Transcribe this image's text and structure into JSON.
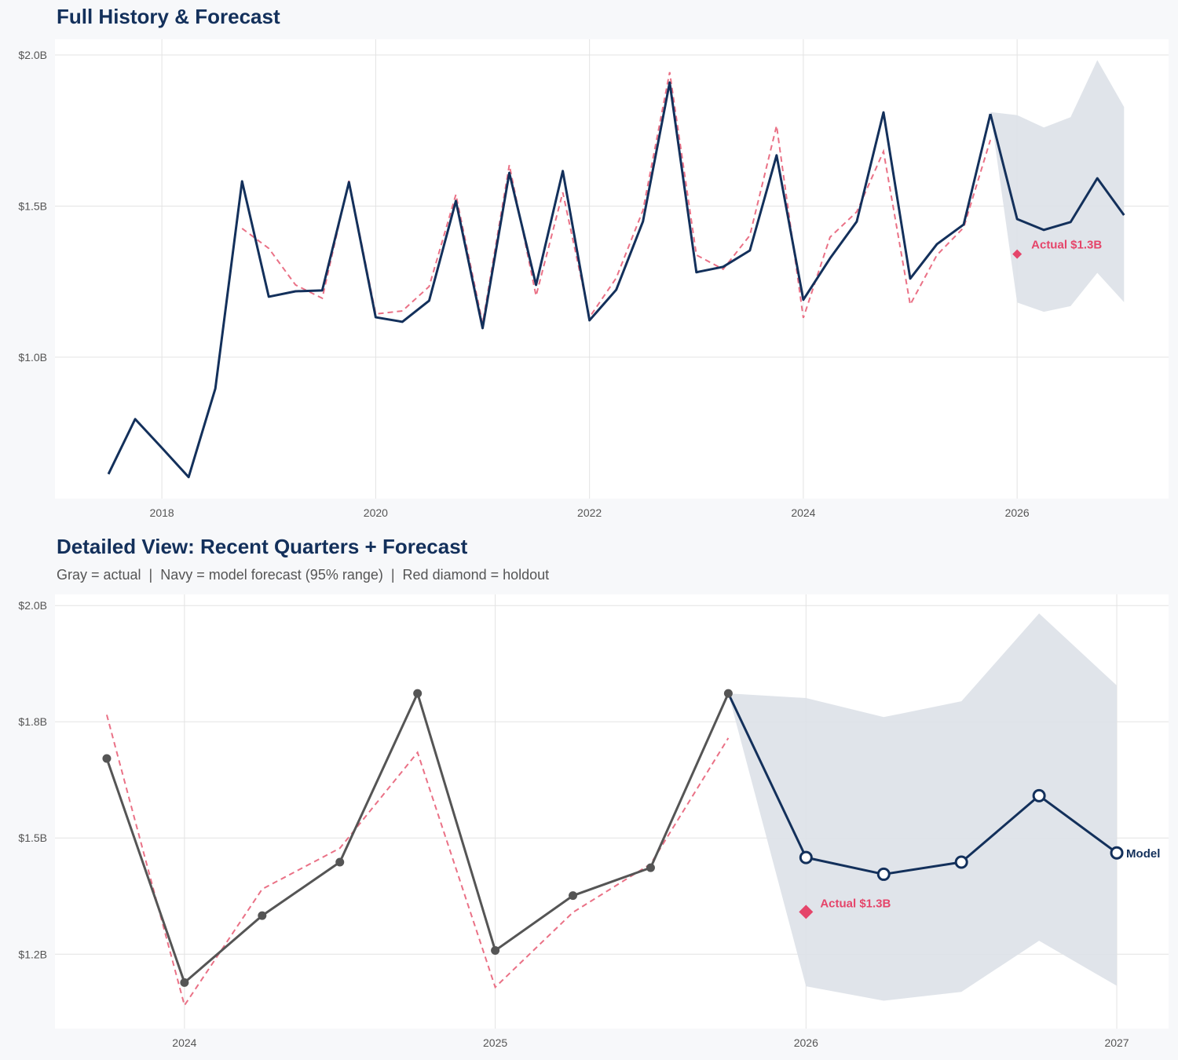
{
  "colors": {
    "navy": "#13305b",
    "gray": "#555555",
    "holdout": "#e5456a",
    "fitted": "#ea7186",
    "band": "#dde1e8",
    "grid": "#e3e3e3",
    "plot_bg": "#ffffff"
  },
  "chart_data": [
    {
      "type": "line",
      "title": "Full History & Forecast",
      "xlim": [
        "2017-01",
        "2027-06"
      ],
      "ylim": [
        0.532,
        2.052
      ],
      "x_ticks": [
        {
          "value": "2018-01",
          "label": "2018"
        },
        {
          "value": "2020-01",
          "label": "2020"
        },
        {
          "value": "2022-01",
          "label": "2022"
        },
        {
          "value": "2024-01",
          "label": "2024"
        },
        {
          "value": "2026-01",
          "label": "2026"
        }
      ],
      "y_ticks": [
        {
          "value": 2.0,
          "label": "$2.0B"
        },
        {
          "value": 1.5,
          "label": "$1.5B"
        },
        {
          "value": 1.0,
          "label": "$1.0B"
        }
      ],
      "grid": true,
      "actual": {
        "x": [
          "2017-07",
          "2017-10",
          "2018-01",
          "2018-04",
          "2018-07",
          "2018-10",
          "2019-01",
          "2019-04",
          "2019-07",
          "2019-10",
          "2020-01",
          "2020-04",
          "2020-07",
          "2020-10",
          "2021-01",
          "2021-04",
          "2021-07",
          "2021-10",
          "2022-01",
          "2022-04",
          "2022-07",
          "2022-10",
          "2023-01",
          "2023-04",
          "2023-07",
          "2023-10",
          "2024-01",
          "2024-04",
          "2024-07",
          "2024-10",
          "2025-01",
          "2025-04",
          "2025-07",
          "2025-10"
        ],
        "y": [
          0.613,
          0.795,
          0.7,
          0.603,
          0.896,
          1.582,
          1.2,
          1.218,
          1.221,
          1.579,
          1.132,
          1.117,
          1.187,
          1.517,
          1.096,
          1.61,
          1.239,
          1.616,
          1.122,
          1.223,
          1.449,
          1.909,
          1.281,
          1.299,
          1.353,
          1.668,
          1.19,
          1.327,
          1.449,
          1.81,
          1.26,
          1.374,
          1.439,
          1.805
        ],
        "color": "navy",
        "markers": false
      },
      "fitted": {
        "x": [
          "2018-10",
          "2019-01",
          "2019-04",
          "2019-07",
          "2019-10",
          "2020-01",
          "2020-04",
          "2020-07",
          "2020-10",
          "2021-01",
          "2021-04",
          "2021-07",
          "2021-10",
          "2022-01",
          "2022-04",
          "2022-07",
          "2022-10",
          "2023-01",
          "2023-04",
          "2023-07",
          "2023-10",
          "2024-01",
          "2024-04",
          "2024-07",
          "2024-10",
          "2025-01",
          "2025-04",
          "2025-07",
          "2025-10"
        ],
        "y": [
          1.426,
          1.36,
          1.239,
          1.195,
          1.584,
          1.143,
          1.153,
          1.234,
          1.538,
          1.112,
          1.636,
          1.203,
          1.545,
          1.132,
          1.262,
          1.486,
          1.943,
          1.338,
          1.291,
          1.403,
          1.766,
          1.13,
          1.397,
          1.481,
          1.681,
          1.174,
          1.338,
          1.429,
          1.719
        ]
      },
      "forecast": {
        "x": [
          "2025-10",
          "2026-01",
          "2026-04",
          "2026-07",
          "2026-10",
          "2027-01"
        ],
        "y": [
          1.805,
          1.457,
          1.421,
          1.447,
          1.592,
          1.47
        ],
        "upper": [
          1.811,
          1.801,
          1.76,
          1.794,
          1.983,
          1.828
        ],
        "lower": [
          1.811,
          1.181,
          1.15,
          1.169,
          1.279,
          1.182
        ],
        "markers": false,
        "end_label": ""
      },
      "holdout": {
        "x": "2026-01",
        "y": 1.341,
        "label": "Actual $1.3B"
      }
    },
    {
      "type": "line",
      "title": "Detailed View: Recent Quarters + Forecast",
      "subtitle": "Gray = actual  |  Navy = model forecast (95% range)  |  Red diamond = holdout",
      "xlim": [
        "2023-08",
        "2027-03"
      ],
      "ylim": [
        1.09,
        2.024
      ],
      "x_ticks": [
        {
          "value": "2024-01",
          "label": "2024"
        },
        {
          "value": "2025-01",
          "label": "2025"
        },
        {
          "value": "2026-01",
          "label": "2026"
        },
        {
          "value": "2027-01",
          "label": "2027"
        }
      ],
      "y_ticks": [
        {
          "value": 2.0,
          "label": "$2.0B"
        },
        {
          "value": 1.75,
          "label": "$1.8B"
        },
        {
          "value": 1.5,
          "label": "$1.5B"
        },
        {
          "value": 1.25,
          "label": "$1.2B"
        }
      ],
      "grid": true,
      "actual": {
        "x": [
          "2023-10",
          "2024-01",
          "2024-04",
          "2024-07",
          "2024-10",
          "2025-01",
          "2025-04",
          "2025-07",
          "2025-10"
        ],
        "y": [
          1.671,
          1.189,
          1.333,
          1.448,
          1.811,
          1.258,
          1.376,
          1.436,
          1.811
        ],
        "color": "gray",
        "markers": true
      },
      "fitted": {
        "x": [
          "2023-10",
          "2024-01",
          "2024-04",
          "2024-07",
          "2024-10",
          "2025-01",
          "2025-04",
          "2025-07",
          "2025-10"
        ],
        "y": [
          1.765,
          1.14,
          1.39,
          1.478,
          1.684,
          1.179,
          1.34,
          1.444,
          1.715
        ]
      },
      "forecast": {
        "x": [
          "2025-10",
          "2026-01",
          "2026-04",
          "2026-07",
          "2026-10",
          "2027-01"
        ],
        "y": [
          1.811,
          1.458,
          1.422,
          1.448,
          1.591,
          1.468
        ],
        "upper": [
          1.811,
          1.801,
          1.76,
          1.794,
          1.983,
          1.828
        ],
        "lower": [
          1.811,
          1.181,
          1.15,
          1.169,
          1.279,
          1.182
        ],
        "markers": true,
        "end_label": "Model"
      },
      "holdout": {
        "x": "2026-01",
        "y": 1.341,
        "label": "Actual $1.3B"
      }
    }
  ]
}
